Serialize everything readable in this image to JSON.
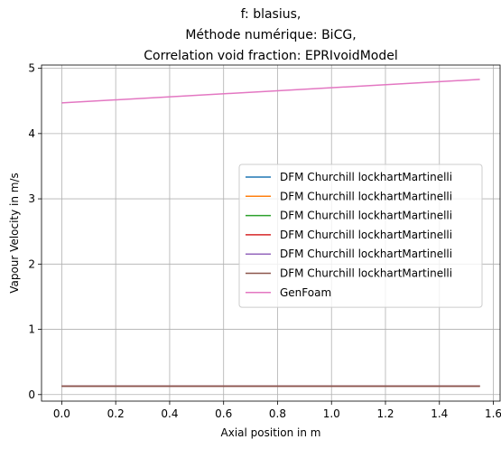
{
  "chart_data": {
    "type": "line",
    "title_lines": [
      "f: blasius,",
      "Méthode numérique: BiCG,",
      "Correlation void fraction: EPRIvoidModel"
    ],
    "xlabel": "Axial position in m",
    "ylabel": "Vapour Velocity in m/s",
    "xlim": [
      -0.075,
      1.625
    ],
    "ylim": [
      -0.1,
      5.05
    ],
    "xticks": [
      0.0,
      0.2,
      0.4,
      0.6,
      0.8,
      1.0,
      1.2,
      1.4,
      1.6
    ],
    "xtick_labels": [
      "0.0",
      "0.2",
      "0.4",
      "0.6",
      "0.8",
      "1.0",
      "1.2",
      "1.4",
      "1.6"
    ],
    "yticks": [
      0,
      1,
      2,
      3,
      4,
      5
    ],
    "ytick_labels": [
      "0",
      "1",
      "2",
      "3",
      "4",
      "5"
    ],
    "grid": true,
    "legend_position": "center-right",
    "series": [
      {
        "name": "DFM Churchill lockhartMartinelli",
        "color": "#1f77b4",
        "x": [
          0.0,
          1.55
        ],
        "y": [
          0.13,
          0.13
        ]
      },
      {
        "name": "DFM Churchill lockhartMartinelli",
        "color": "#ff7f0e",
        "x": [
          0.0,
          1.55
        ],
        "y": [
          0.13,
          0.13
        ]
      },
      {
        "name": "DFM Churchill lockhartMartinelli",
        "color": "#2ca02c",
        "x": [
          0.0,
          1.55
        ],
        "y": [
          0.13,
          0.13
        ]
      },
      {
        "name": "DFM Churchill lockhartMartinelli",
        "color": "#d62728",
        "x": [
          0.0,
          1.55
        ],
        "y": [
          0.13,
          0.13
        ]
      },
      {
        "name": "DFM Churchill lockhartMartinelli",
        "color": "#9467bd",
        "x": [
          0.0,
          1.55
        ],
        "y": [
          0.13,
          0.13
        ]
      },
      {
        "name": "DFM Churchill lockhartMartinelli",
        "color": "#8c564b",
        "x": [
          0.0,
          1.55
        ],
        "y": [
          0.13,
          0.13
        ]
      },
      {
        "name": "GenFoam",
        "color": "#e377c2",
        "x": [
          0.0,
          1.55
        ],
        "y": [
          4.47,
          4.83
        ]
      }
    ]
  }
}
